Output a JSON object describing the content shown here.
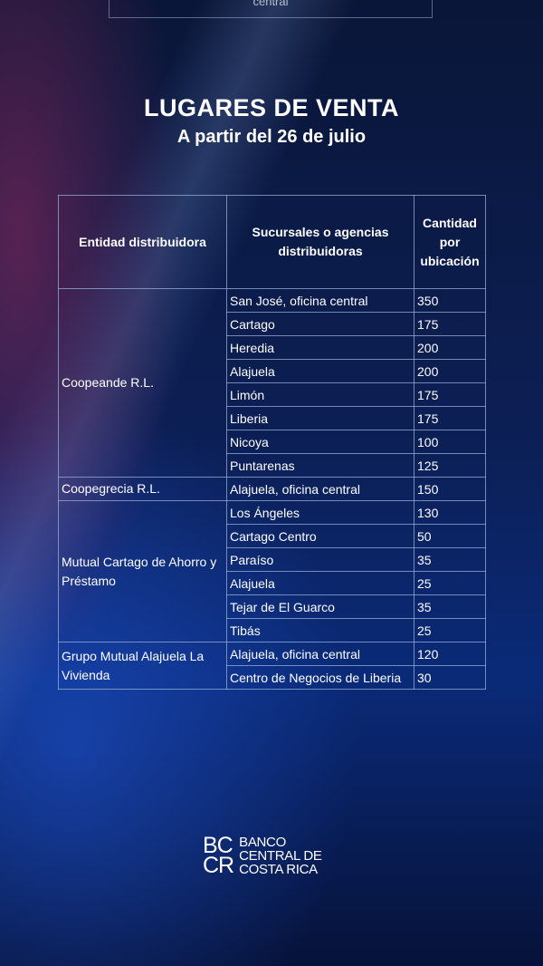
{
  "top_fragment": "central",
  "header": {
    "title": "LUGARES DE VENTA",
    "subtitle": "A partir del 26 de julio"
  },
  "table": {
    "columns": [
      "Entidad distribuidora",
      "Sucursales o agencias distribuidoras",
      "Cantidad por ubicación"
    ],
    "groups": [
      {
        "entity": "Coopeande R.L.",
        "rows": [
          [
            "San José, oficina central",
            350
          ],
          [
            "Cartago",
            175
          ],
          [
            "Heredia",
            200
          ],
          [
            "Alajuela",
            200
          ],
          [
            "Limón",
            175
          ],
          [
            "Liberia",
            175
          ],
          [
            "Nicoya",
            100
          ],
          [
            "Puntarenas",
            125
          ]
        ]
      },
      {
        "entity": "Coopegrecia R.L.",
        "rows": [
          [
            "Alajuela, oficina central",
            150
          ]
        ]
      },
      {
        "entity": "Mutual Cartago de Ahorro y Préstamo",
        "rows": [
          [
            "Los Ángeles",
            130
          ],
          [
            "Cartago Centro",
            50
          ],
          [
            "Paraíso",
            35
          ],
          [
            "Alajuela",
            25
          ],
          [
            "Tejar de El Guarco",
            35
          ],
          [
            "Tibás",
            25
          ]
        ]
      },
      {
        "entity": "Grupo Mutual Alajuela La Vivienda",
        "rows": [
          [
            "Alajuela, oficina central",
            120
          ],
          [
            "Centro de Negocios de Liberia",
            30
          ]
        ]
      }
    ]
  },
  "logo": {
    "mark": [
      "BC",
      "CR"
    ],
    "lines": [
      "BANCO",
      "CENTRAL DE",
      "COSTA RICA"
    ]
  }
}
